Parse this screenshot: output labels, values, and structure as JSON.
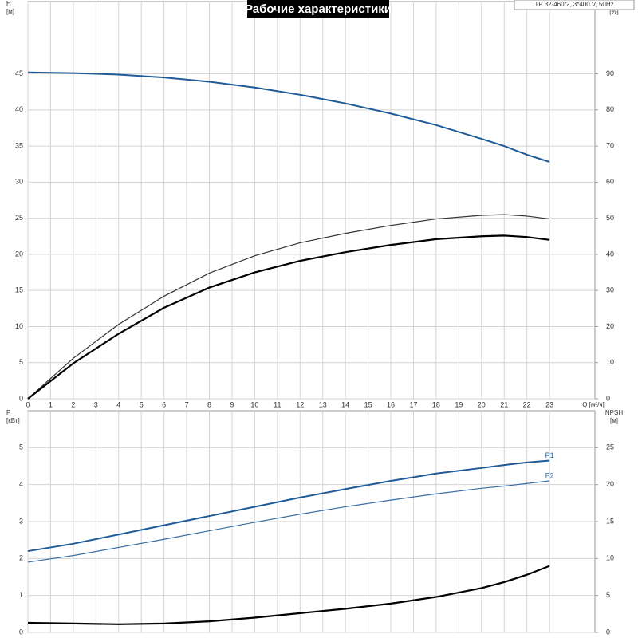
{
  "title": "Рабочие характеристики",
  "subtitle": "TP 32-460/2, 3*400 V, 50Hz",
  "chart_data": [
    {
      "type": "line",
      "ylabel": [
        "H",
        "[м]"
      ],
      "y2label": [
        "eta",
        "[%]"
      ],
      "xlabel": "Q [м³/ч]",
      "xlim": [
        0,
        25
      ],
      "xticks": [
        0,
        1,
        2,
        3,
        4,
        5,
        6,
        7,
        8,
        9,
        10,
        11,
        12,
        13,
        14,
        15,
        16,
        17,
        18,
        19,
        20,
        21,
        22,
        23
      ],
      "ylim": [
        0,
        55
      ],
      "yticks": [
        0,
        5,
        10,
        15,
        20,
        25,
        30,
        35,
        40,
        45
      ],
      "y2lim": [
        0,
        110
      ],
      "y2ticks": [
        0,
        10,
        20,
        30,
        40,
        50,
        60,
        70,
        80,
        90
      ],
      "grid": true,
      "x": [
        0,
        2,
        4,
        6,
        8,
        10,
        12,
        14,
        16,
        18,
        20,
        21,
        22,
        23
      ],
      "series": [
        {
          "color": "#1f5b99",
          "width": 2,
          "values": [
            45.2,
            45.1,
            44.9,
            44.5,
            43.9,
            43.1,
            42.1,
            40.9,
            39.5,
            37.9,
            36.0,
            35.0,
            33.8,
            32.8
          ]
        },
        {
          "color": "#333333",
          "width": 1.2,
          "axis": "y2",
          "values": [
            0,
            11.2,
            20.6,
            28.4,
            34.8,
            39.6,
            43.2,
            45.8,
            48.0,
            49.8,
            50.8,
            51.0,
            50.6,
            49.8
          ]
        },
        {
          "color": "#000000",
          "width": 2.2,
          "axis": "y2",
          "values": [
            0,
            9.8,
            18.0,
            25.2,
            30.8,
            35.0,
            38.2,
            40.6,
            42.6,
            44.2,
            45.0,
            45.2,
            44.8,
            44.0
          ]
        }
      ]
    },
    {
      "type": "line",
      "ylabel": [
        "P",
        "[кВт]"
      ],
      "y2label": [
        "NPSH",
        "[м]"
      ],
      "xlim": [
        0,
        25
      ],
      "ylim": [
        0,
        6
      ],
      "yticks": [
        0,
        1,
        2,
        3,
        4,
        5
      ],
      "y2lim": [
        0,
        30
      ],
      "y2ticks": [
        0,
        5,
        10,
        15,
        20,
        25
      ],
      "grid": true,
      "x": [
        0,
        2,
        4,
        6,
        8,
        10,
        12,
        14,
        16,
        18,
        20,
        21,
        22,
        23
      ],
      "series": [
        {
          "name": "P1",
          "color": "#1f5b99",
          "width": 2,
          "values": [
            2.2,
            2.4,
            2.65,
            2.9,
            3.15,
            3.4,
            3.65,
            3.88,
            4.1,
            4.3,
            4.45,
            4.53,
            4.6,
            4.65
          ]
        },
        {
          "name": "P2",
          "color": "#3a6ea5",
          "width": 1.2,
          "values": [
            1.9,
            2.08,
            2.3,
            2.52,
            2.75,
            2.98,
            3.2,
            3.4,
            3.58,
            3.75,
            3.9,
            3.96,
            4.03,
            4.1
          ]
        },
        {
          "color": "#000000",
          "width": 2.2,
          "axis": "y2",
          "values": [
            1.3,
            1.2,
            1.1,
            1.2,
            1.5,
            2.0,
            2.6,
            3.2,
            3.9,
            4.8,
            6.0,
            6.8,
            7.8,
            9.0
          ]
        }
      ]
    }
  ]
}
